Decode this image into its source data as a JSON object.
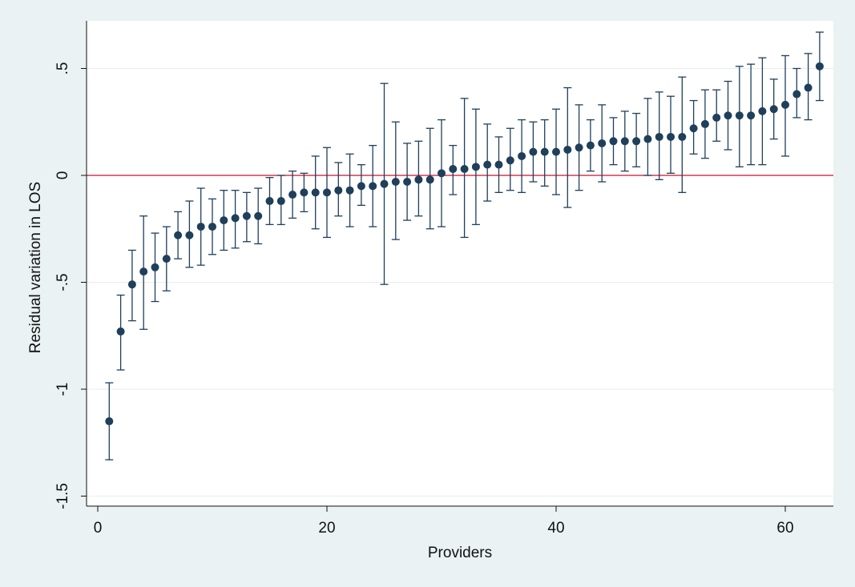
{
  "chart_data": {
    "type": "scatter",
    "title": "",
    "xlabel": "Providers",
    "ylabel": "Residual variation in LOS",
    "xlim": [
      0,
      64
    ],
    "ylim": [
      -1.5,
      0.5
    ],
    "x_ticks": [
      0,
      20,
      40,
      60
    ],
    "x_tick_labels": [
      "0",
      "20",
      "40",
      "60"
    ],
    "y_ticks": [
      -1.5,
      -1,
      -0.5,
      0,
      0.5
    ],
    "y_tick_labels": [
      "-1.5",
      "-1",
      "-.5",
      "0",
      ".5"
    ],
    "grid": "horizontal",
    "reference_line": {
      "y": 0,
      "color": "#c8102e"
    },
    "colors": {
      "background": "#eaf2f3",
      "plot_area": "#ffffff",
      "markers": "#1f3f5b",
      "grid": "#e6eef0"
    },
    "series": [
      {
        "x": [
          1,
          2,
          3,
          4,
          5,
          6,
          7,
          8,
          9,
          10,
          11,
          12,
          13,
          14,
          15,
          16,
          17,
          18,
          19,
          20,
          21,
          22,
          23,
          24,
          25,
          26,
          27,
          28,
          29,
          30,
          31,
          32,
          33,
          34,
          35,
          36,
          37,
          38,
          39,
          40,
          41,
          42,
          43,
          44,
          45,
          46,
          47,
          48,
          49,
          50,
          51,
          52,
          53,
          54,
          55,
          56,
          57,
          58,
          59,
          60,
          61,
          62,
          63
        ],
        "y": [
          -1.15,
          -0.73,
          -0.51,
          -0.45,
          -0.43,
          -0.39,
          -0.28,
          -0.28,
          -0.24,
          -0.24,
          -0.21,
          -0.2,
          -0.19,
          -0.19,
          -0.12,
          -0.12,
          -0.09,
          -0.08,
          -0.08,
          -0.08,
          -0.07,
          -0.07,
          -0.05,
          -0.05,
          -0.04,
          -0.03,
          -0.03,
          -0.02,
          -0.02,
          0.01,
          0.03,
          0.03,
          0.04,
          0.05,
          0.05,
          0.07,
          0.09,
          0.11,
          0.11,
          0.11,
          0.12,
          0.13,
          0.14,
          0.15,
          0.16,
          0.16,
          0.16,
          0.17,
          0.18,
          0.18,
          0.18,
          0.22,
          0.24,
          0.27,
          0.28,
          0.28,
          0.28,
          0.3,
          0.31,
          0.33,
          0.38,
          0.41,
          0.51
        ],
        "ci_low": [
          -1.33,
          -0.91,
          -0.68,
          -0.72,
          -0.59,
          -0.54,
          -0.39,
          -0.43,
          -0.42,
          -0.37,
          -0.35,
          -0.34,
          -0.31,
          -0.32,
          -0.23,
          -0.23,
          -0.2,
          -0.17,
          -0.25,
          -0.29,
          -0.19,
          -0.24,
          -0.14,
          -0.24,
          -0.51,
          -0.3,
          -0.21,
          -0.19,
          -0.25,
          -0.24,
          -0.09,
          -0.29,
          -0.23,
          -0.12,
          -0.08,
          -0.07,
          -0.08,
          -0.03,
          -0.05,
          -0.09,
          -0.15,
          -0.07,
          0.02,
          -0.03,
          0.05,
          0.02,
          0.04,
          0.0,
          -0.02,
          0.01,
          -0.08,
          0.1,
          0.08,
          0.16,
          0.12,
          0.04,
          0.05,
          0.05,
          0.17,
          0.09,
          0.27,
          0.26,
          0.35
        ],
        "ci_high": [
          -0.97,
          -0.56,
          -0.35,
          -0.19,
          -0.27,
          -0.24,
          -0.17,
          -0.12,
          -0.06,
          -0.11,
          -0.07,
          -0.07,
          -0.08,
          -0.06,
          -0.01,
          0.0,
          0.02,
          0.01,
          0.09,
          0.13,
          0.06,
          0.1,
          0.05,
          0.14,
          0.43,
          0.25,
          0.15,
          0.16,
          0.22,
          0.26,
          0.14,
          0.36,
          0.31,
          0.24,
          0.18,
          0.22,
          0.26,
          0.25,
          0.26,
          0.31,
          0.41,
          0.33,
          0.26,
          0.33,
          0.27,
          0.3,
          0.29,
          0.36,
          0.39,
          0.37,
          0.46,
          0.35,
          0.4,
          0.4,
          0.44,
          0.51,
          0.52,
          0.55,
          0.45,
          0.56,
          0.5,
          0.57,
          0.67
        ]
      }
    ]
  }
}
